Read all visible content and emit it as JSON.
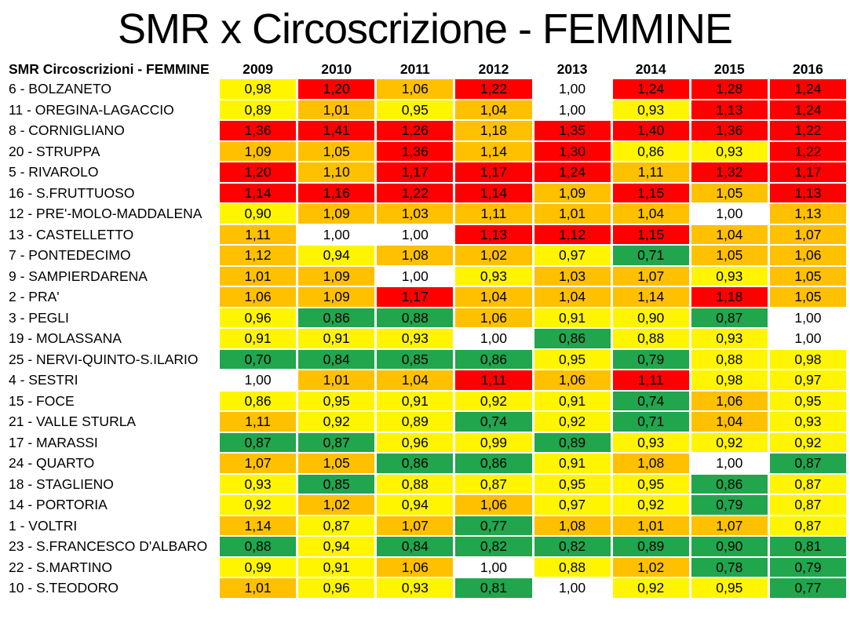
{
  "title": "SMR x Circoscrizione - FEMMINE",
  "colors": {
    "red": "#FE0000",
    "orange": "#FFC000",
    "yellow": "#FFF500",
    "green": "#21A54D",
    "white": "#FFFFFF",
    "text": "#000000"
  },
  "chart_data": {
    "type": "heatmap",
    "title": "SMR x Circoscrizione - FEMMINE",
    "corner_label": "SMR Circoscrizioni - FEMMINE",
    "x": [
      "2009",
      "2010",
      "2011",
      "2012",
      "2013",
      "2014",
      "2015",
      "2016"
    ],
    "color_legend_meaning": "cell fill encodes SMR level: green=low, yellow=mid-low, white=1.00, orange=mid-high, red=high",
    "rows": [
      {
        "label": "6 - BOLZANETO",
        "values": [
          "0,98",
          "1,20",
          "1,06",
          "1,22",
          "1,00",
          "1,24",
          "1,28",
          "1,24"
        ],
        "cell_colors": [
          "yellow",
          "red",
          "orange",
          "red",
          "white",
          "red",
          "red",
          "red"
        ]
      },
      {
        "label": "11 - OREGINA-LAGACCIO",
        "values": [
          "0,89",
          "1,01",
          "0,95",
          "1,04",
          "1,00",
          "0,93",
          "1,13",
          "1,24"
        ],
        "cell_colors": [
          "yellow",
          "orange",
          "yellow",
          "orange",
          "white",
          "yellow",
          "red",
          "red"
        ]
      },
      {
        "label": "8 - CORNIGLIANO",
        "values": [
          "1,36",
          "1,41",
          "1,26",
          "1,18",
          "1,35",
          "1,40",
          "1,36",
          "1,22"
        ],
        "cell_colors": [
          "red",
          "red",
          "red",
          "orange",
          "red",
          "red",
          "red",
          "red"
        ]
      },
      {
        "label": "20 - STRUPPA",
        "values": [
          "1,09",
          "1,05",
          "1,36",
          "1,14",
          "1,30",
          "0,86",
          "0,93",
          "1,22"
        ],
        "cell_colors": [
          "orange",
          "orange",
          "red",
          "orange",
          "red",
          "yellow",
          "yellow",
          "red"
        ]
      },
      {
        "label": "5 - RIVAROLO",
        "values": [
          "1,20",
          "1,10",
          "1,17",
          "1,17",
          "1,24",
          "1,11",
          "1,32",
          "1,17"
        ],
        "cell_colors": [
          "red",
          "orange",
          "red",
          "red",
          "red",
          "orange",
          "red",
          "red"
        ]
      },
      {
        "label": "16 - S.FRUTTUOSO",
        "values": [
          "1,14",
          "1,16",
          "1,22",
          "1,14",
          "1,09",
          "1,15",
          "1,05",
          "1,13"
        ],
        "cell_colors": [
          "red",
          "red",
          "red",
          "red",
          "orange",
          "red",
          "orange",
          "red"
        ]
      },
      {
        "label": "12 - PRE'-MOLO-MADDALENA",
        "values": [
          "0,90",
          "1,09",
          "1,03",
          "1,11",
          "1,01",
          "1,04",
          "1,00",
          "1,13"
        ],
        "cell_colors": [
          "yellow",
          "orange",
          "orange",
          "orange",
          "orange",
          "orange",
          "white",
          "orange"
        ]
      },
      {
        "label": "13 - CASTELLETTO",
        "values": [
          "1,11",
          "1,00",
          "1,00",
          "1,13",
          "1,12",
          "1,15",
          "1,04",
          "1,07"
        ],
        "cell_colors": [
          "orange",
          "white",
          "white",
          "red",
          "red",
          "red",
          "orange",
          "orange"
        ]
      },
      {
        "label": "7 - PONTEDECIMO",
        "values": [
          "1,12",
          "0,94",
          "1,08",
          "1,02",
          "0,97",
          "0,71",
          "1,05",
          "1,06"
        ],
        "cell_colors": [
          "orange",
          "yellow",
          "orange",
          "orange",
          "yellow",
          "green",
          "orange",
          "orange"
        ]
      },
      {
        "label": "9 - SAMPIERDARENA",
        "values": [
          "1,01",
          "1,09",
          "1,00",
          "0,93",
          "1,03",
          "1,07",
          "0,93",
          "1,05"
        ],
        "cell_colors": [
          "orange",
          "orange",
          "white",
          "yellow",
          "orange",
          "orange",
          "yellow",
          "orange"
        ]
      },
      {
        "label": "2 - PRA'",
        "values": [
          "1,06",
          "1,09",
          "1,17",
          "1,04",
          "1,04",
          "1,14",
          "1,18",
          "1,05"
        ],
        "cell_colors": [
          "orange",
          "orange",
          "red",
          "orange",
          "orange",
          "orange",
          "red",
          "orange"
        ]
      },
      {
        "label": "3 - PEGLI",
        "values": [
          "0,96",
          "0,86",
          "0,88",
          "1,06",
          "0,91",
          "0,90",
          "0,87",
          "1,00"
        ],
        "cell_colors": [
          "yellow",
          "green",
          "green",
          "orange",
          "yellow",
          "yellow",
          "green",
          "white"
        ]
      },
      {
        "label": "19 - MOLASSANA",
        "values": [
          "0,91",
          "0,91",
          "0,93",
          "1,00",
          "0,86",
          "0,88",
          "0,93",
          "1,00"
        ],
        "cell_colors": [
          "yellow",
          "yellow",
          "yellow",
          "white",
          "green",
          "yellow",
          "yellow",
          "white"
        ]
      },
      {
        "label": "25 - NERVI-QUINTO-S.ILARIO",
        "values": [
          "0,70",
          "0,84",
          "0,85",
          "0,86",
          "0,95",
          "0,79",
          "0,88",
          "0,98"
        ],
        "cell_colors": [
          "green",
          "green",
          "green",
          "green",
          "yellow",
          "green",
          "yellow",
          "yellow"
        ]
      },
      {
        "label": "4 - SESTRI",
        "values": [
          "1,00",
          "1,01",
          "1,04",
          "1,11",
          "1,06",
          "1,11",
          "0,98",
          "0,97"
        ],
        "cell_colors": [
          "white",
          "orange",
          "orange",
          "red",
          "orange",
          "red",
          "yellow",
          "yellow"
        ]
      },
      {
        "label": "15 - FOCE",
        "values": [
          "0,86",
          "0,95",
          "0,91",
          "0,92",
          "0,91",
          "0,74",
          "1,06",
          "0,95"
        ],
        "cell_colors": [
          "yellow",
          "yellow",
          "yellow",
          "yellow",
          "yellow",
          "green",
          "orange",
          "yellow"
        ]
      },
      {
        "label": "21 - VALLE STURLA",
        "values": [
          "1,11",
          "0,92",
          "0,89",
          "0,74",
          "0,92",
          "0,71",
          "1,04",
          "0,93"
        ],
        "cell_colors": [
          "orange",
          "yellow",
          "yellow",
          "green",
          "yellow",
          "green",
          "orange",
          "yellow"
        ]
      },
      {
        "label": "17 - MARASSI",
        "values": [
          "0,87",
          "0,87",
          "0,96",
          "0,99",
          "0,89",
          "0,93",
          "0,92",
          "0,92"
        ],
        "cell_colors": [
          "green",
          "green",
          "yellow",
          "yellow",
          "green",
          "yellow",
          "yellow",
          "yellow"
        ]
      },
      {
        "label": "24 - QUARTO",
        "values": [
          "1,07",
          "1,05",
          "0,86",
          "0,86",
          "0,91",
          "1,08",
          "1,00",
          "0,87"
        ],
        "cell_colors": [
          "orange",
          "orange",
          "green",
          "green",
          "yellow",
          "orange",
          "white",
          "green"
        ]
      },
      {
        "label": "18 - STAGLIENO",
        "values": [
          "0,93",
          "0,85",
          "0,88",
          "0,87",
          "0,95",
          "0,95",
          "0,86",
          "0,87"
        ],
        "cell_colors": [
          "yellow",
          "green",
          "yellow",
          "yellow",
          "yellow",
          "yellow",
          "green",
          "yellow"
        ]
      },
      {
        "label": "14 - PORTORIA",
        "values": [
          "0,92",
          "1,02",
          "0,94",
          "1,06",
          "0,97",
          "0,92",
          "0,79",
          "0,87"
        ],
        "cell_colors": [
          "yellow",
          "orange",
          "yellow",
          "orange",
          "yellow",
          "yellow",
          "green",
          "yellow"
        ]
      },
      {
        "label": "1 - VOLTRI",
        "values": [
          "1,14",
          "0,87",
          "1,07",
          "0,77",
          "1,08",
          "1,01",
          "1,07",
          "0,87"
        ],
        "cell_colors": [
          "orange",
          "yellow",
          "orange",
          "green",
          "orange",
          "orange",
          "orange",
          "yellow"
        ]
      },
      {
        "label": "23 - S.FRANCESCO D'ALBARO",
        "values": [
          "0,88",
          "0,94",
          "0,84",
          "0,82",
          "0,82",
          "0,89",
          "0,90",
          "0,81"
        ],
        "cell_colors": [
          "green",
          "yellow",
          "green",
          "green",
          "green",
          "green",
          "green",
          "green"
        ]
      },
      {
        "label": "22 - S.MARTINO",
        "values": [
          "0,99",
          "0,91",
          "1,06",
          "1,00",
          "0,88",
          "1,02",
          "0,78",
          "0,79"
        ],
        "cell_colors": [
          "yellow",
          "yellow",
          "orange",
          "white",
          "yellow",
          "orange",
          "green",
          "green"
        ]
      },
      {
        "label": "10 - S.TEODORO",
        "values": [
          "1,01",
          "0,96",
          "0,93",
          "0,81",
          "1,00",
          "0,92",
          "0,95",
          "0,77"
        ],
        "cell_colors": [
          "orange",
          "yellow",
          "yellow",
          "green",
          "white",
          "yellow",
          "yellow",
          "green"
        ]
      }
    ]
  }
}
